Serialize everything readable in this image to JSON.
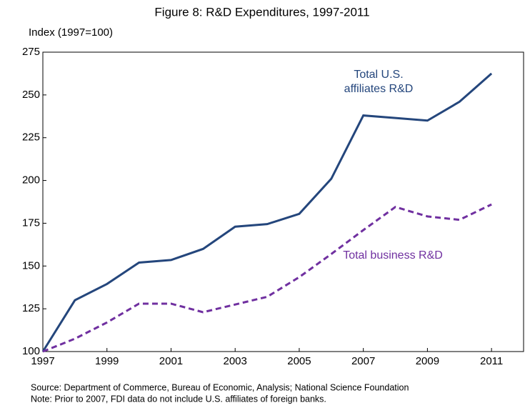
{
  "chart_data": {
    "type": "line",
    "title": "Figure 8: R&D Expenditures, 1997-2011",
    "y_label": "Index (1997=100)",
    "x": [
      1997,
      1998,
      1999,
      2000,
      2001,
      2002,
      2003,
      2004,
      2005,
      2006,
      2007,
      2008,
      2009,
      2010,
      2011
    ],
    "series": [
      {
        "name": "Total U.S. affiliates R&D",
        "color": "#24467c",
        "dash": false,
        "values": [
          100,
          130,
          139.5,
          152,
          153.5,
          160,
          173,
          174.5,
          180.5,
          201,
          238,
          236.5,
          235,
          246,
          262.5
        ]
      },
      {
        "name": "Total business R&D",
        "color": "#7030a0",
        "dash": true,
        "values": [
          100,
          107.5,
          117,
          128,
          128,
          123,
          127.5,
          132,
          143.5,
          157,
          171,
          184.5,
          179,
          177,
          186
        ]
      }
    ],
    "xlim": [
      1997,
      2012
    ],
    "xticks": [
      1997,
      1999,
      2001,
      2003,
      2005,
      2007,
      2009,
      2011
    ],
    "ylim": [
      100,
      275
    ],
    "yticks": [
      100,
      125,
      150,
      175,
      200,
      225,
      250,
      275
    ],
    "grid": false,
    "notes": [
      "Source: Department of Commerce, Bureau of Economic, Analysis; National Science Foundation",
      "Note: Prior to 2007, FDI data do not include U.S. affiliates of foreign banks."
    ]
  }
}
